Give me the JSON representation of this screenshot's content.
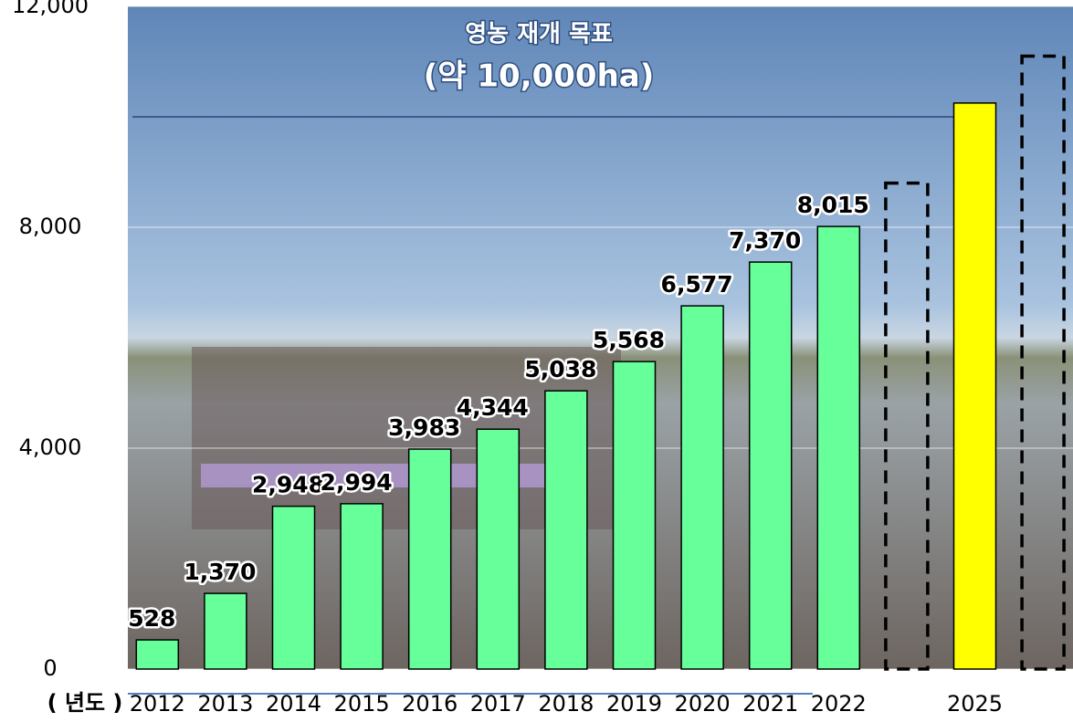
{
  "chart_data": {
    "type": "bar",
    "categories": [
      "2012",
      "2013",
      "2014",
      "2015",
      "2016",
      "2017",
      "2018",
      "2019",
      "2020",
      "2021",
      "2022",
      null,
      "2025",
      null
    ],
    "values": [
      528,
      1370,
      2948,
      2994,
      3983,
      4344,
      5038,
      5568,
      6577,
      7370,
      8015,
      null,
      10250,
      null
    ],
    "value_labels": [
      "528",
      "1,370",
      "2,948",
      "2,994",
      "3,983",
      "4,344",
      "5,038",
      "5,568",
      "6,577",
      "7,370",
      "8,015",
      null,
      null,
      null
    ],
    "colors": [
      "#66ff99",
      "#66ff99",
      "#66ff99",
      "#66ff99",
      "#66ff99",
      "#66ff99",
      "#66ff99",
      "#66ff99",
      "#66ff99",
      "#66ff99",
      "#66ff99",
      null,
      "#ffff00",
      null
    ],
    "dashed_values": [
      null,
      null,
      null,
      null,
      null,
      null,
      null,
      null,
      null,
      null,
      null,
      8800,
      null,
      11100
    ],
    "target_line": 10000,
    "annotation": [
      "영농 재개 목표",
      "(약 10,000ha)"
    ],
    "x_label": "( 년도 )",
    "ylim": [
      0,
      12000
    ],
    "yticks": [
      {
        "value": 0,
        "label": "0"
      },
      {
        "value": 4000,
        "label": "4,000"
      },
      {
        "value": 8000,
        "label": "8,000"
      },
      {
        "value": 12000,
        "label": "12,000"
      }
    ],
    "grid": true
  }
}
